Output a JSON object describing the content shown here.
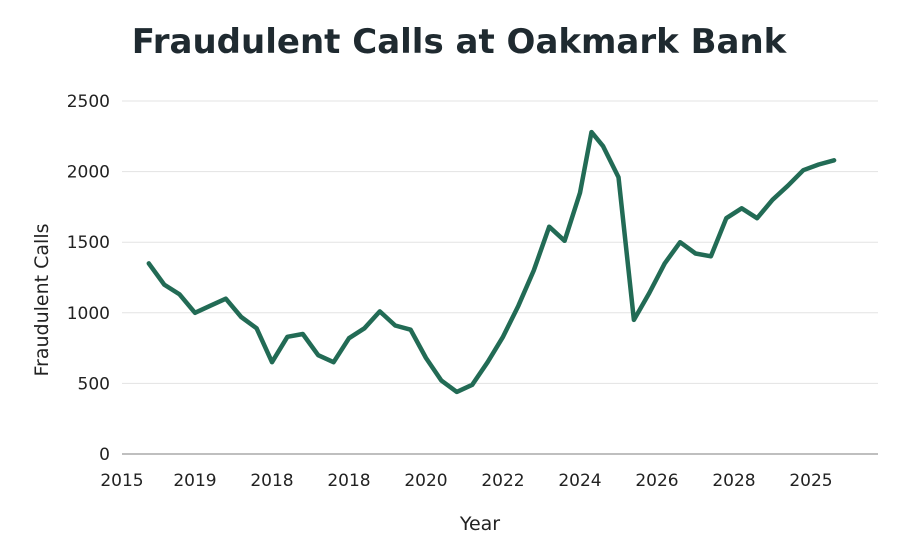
{
  "chart_data": {
    "type": "line",
    "title": "Fraudulent Calls at Oakmark Bank",
    "xlabel": "Year",
    "ylabel": "Fraudulent Calls",
    "ylim": [
      0,
      2500
    ],
    "yticks": [
      0,
      500,
      1000,
      1500,
      2000,
      2500
    ],
    "xtick_labels": [
      "2015",
      "2019",
      "2018",
      "2018",
      "2020",
      "2022",
      "2024",
      "2026",
      "2028",
      "2025"
    ],
    "grid": "horizontal",
    "legend": "none",
    "series": [
      {
        "color": "#226b55",
        "x": [
          0.4,
          0.6,
          0.8,
          1.0,
          1.2,
          1.4,
          1.6,
          1.8,
          2.0,
          2.2,
          2.4,
          2.6,
          2.8,
          3.0,
          3.2,
          3.4,
          3.6,
          3.8,
          4.0,
          4.2,
          4.4,
          4.6,
          4.8,
          5.0,
          5.2,
          5.4,
          5.6,
          5.8,
          6.0,
          6.15,
          6.3,
          6.5,
          6.7,
          6.9,
          7.1,
          7.3,
          7.5,
          7.7,
          7.9,
          8.1,
          8.3,
          8.5,
          8.7,
          8.9,
          9.1,
          9.3
        ],
        "values": [
          1350,
          1200,
          1130,
          1000,
          1050,
          1100,
          970,
          890,
          650,
          830,
          850,
          700,
          650,
          820,
          890,
          1010,
          910,
          880,
          680,
          520,
          440,
          490,
          650,
          830,
          1050,
          1300,
          1610,
          1510,
          1850,
          2280,
          2180,
          1960,
          950,
          1140,
          1350,
          1500,
          1420,
          1400,
          1670,
          1740,
          1670,
          1800,
          1900,
          2010,
          2050,
          2080
        ]
      }
    ]
  }
}
